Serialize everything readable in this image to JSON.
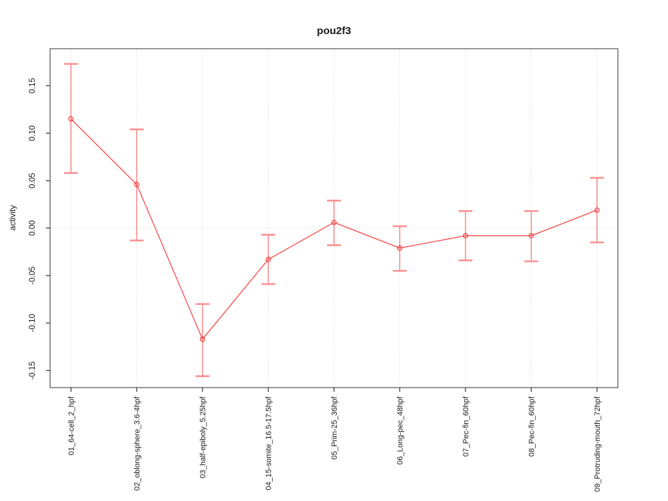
{
  "chart": {
    "title": "pou2f3",
    "ylabel": "activity"
  },
  "chart_data": {
    "type": "line",
    "title": "pou2f3",
    "xlabel": "",
    "ylabel": "activity",
    "categories": [
      "01_64-cell_2_hpf",
      "02_oblong-sphere_3.6-4hpf",
      "03_half-epiboly_5.25hpf",
      "04_15-somite_16.5-17.5hpf",
      "05_Prim-25_36hpf",
      "06_Long-pec_48hpf",
      "07_Pec-fin_60hpf",
      "08_Pec-fin_60hpf",
      "09_Protruding-mouth_72hpf"
    ],
    "series": [
      {
        "name": "pou2f3 activity",
        "values": [
          0.115,
          0.046,
          -0.117,
          -0.033,
          0.006,
          -0.021,
          -0.008,
          -0.008,
          0.019
        ],
        "error_low": [
          0.058,
          -0.013,
          -0.156,
          -0.059,
          -0.018,
          -0.045,
          -0.034,
          -0.035,
          -0.015
        ],
        "error_high": [
          0.173,
          0.104,
          -0.08,
          -0.007,
          0.029,
          0.002,
          0.018,
          0.018,
          0.053
        ]
      }
    ],
    "yticks": [
      0.15,
      0.1,
      0.05,
      0,
      -0.05,
      -0.1,
      -0.15
    ],
    "ylim": [
      -0.168,
      0.189
    ],
    "grid": {
      "vertical_at_categories": true,
      "horizontal_at_zero": true,
      "style": "dotted"
    },
    "legend": {
      "visible": false
    },
    "colors": {
      "line": "#f53d3d",
      "point": "#f53d3d",
      "error_bar": "#fa6a6a",
      "error_cap": "#ff8c8c",
      "grid": "#d9d9d9",
      "box": "#7f7f7f",
      "tick": "#404040",
      "text": "#1a1a1a"
    }
  }
}
